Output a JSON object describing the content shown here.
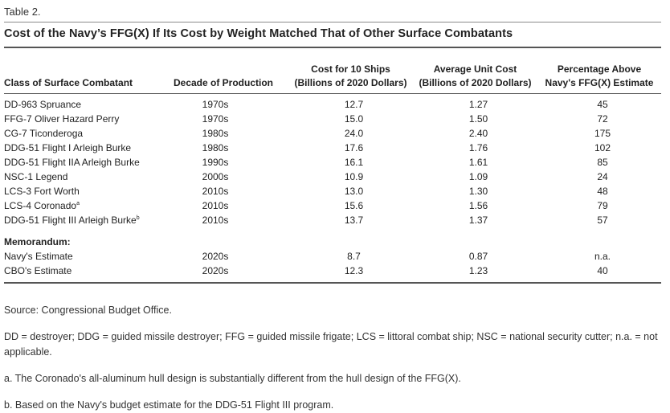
{
  "table_label": "Table 2.",
  "title": "Cost of the Navy’s FFG(X) If Its Cost by Weight Matched That of Other Surface Combatants",
  "columns": {
    "class": "Class of Surface Combatant",
    "decade": "Decade of Production",
    "cost_line1": "Cost for 10 Ships",
    "cost_line2": "(Billions of 2020 Dollars)",
    "unit_line1": "Average Unit Cost",
    "unit_line2": "(Billions of 2020 Dollars)",
    "pct_line1": "Percentage Above",
    "pct_line2": "Navy's FFG(X) Estimate"
  },
  "rows": [
    {
      "name": "DD-963 Spruance",
      "sup": "",
      "decade": "1970s",
      "cost": "12.7",
      "unit": "1.27",
      "pct": "45"
    },
    {
      "name": "FFG-7 Oliver Hazard Perry",
      "sup": "",
      "decade": "1970s",
      "cost": "15.0",
      "unit": "1.50",
      "pct": "72"
    },
    {
      "name": "CG-7 Ticonderoga",
      "sup": "",
      "decade": "1980s",
      "cost": "24.0",
      "unit": "2.40",
      "pct": "175"
    },
    {
      "name": "DDG-51 Flight I Arleigh Burke",
      "sup": "",
      "decade": "1980s",
      "cost": "17.6",
      "unit": "1.76",
      "pct": "102"
    },
    {
      "name": "DDG-51 Flight IIA Arleigh Burke",
      "sup": "",
      "decade": "1990s",
      "cost": "16.1",
      "unit": "1.61",
      "pct": "85"
    },
    {
      "name": "NSC-1 Legend",
      "sup": "",
      "decade": "2000s",
      "cost": "10.9",
      "unit": "1.09",
      "pct": "24"
    },
    {
      "name": "LCS-3 Fort Worth",
      "sup": "",
      "decade": "2010s",
      "cost": "13.0",
      "unit": "1.30",
      "pct": "48"
    },
    {
      "name": "LCS-4 Coronado",
      "sup": "a",
      "decade": "2010s",
      "cost": "15.6",
      "unit": "1.56",
      "pct": "79"
    },
    {
      "name": "DDG-51 Flight III Arleigh Burke",
      "sup": "b",
      "decade": "2010s",
      "cost": "13.7",
      "unit": "1.37",
      "pct": "57"
    }
  ],
  "memo_label": "Memorandum:",
  "memo_rows": [
    {
      "name": "Navy's Estimate",
      "decade": "2020s",
      "cost": "8.7",
      "unit": "0.87",
      "pct": "n.a."
    },
    {
      "name": "CBO's Estimate",
      "decade": "2020s",
      "cost": "12.3",
      "unit": "1.23",
      "pct": "40"
    }
  ],
  "notes": {
    "source": "Source: Congressional Budget Office.",
    "abbreviations": "DD = destroyer; DDG = guided missile destroyer; FFG = guided missile frigate; LCS = littoral combat ship; NSC = national security cutter; n.a. = not applicable.",
    "note_a": "a. The Coronado's all-aluminum hull design is substantially different from the hull design of the FFG(X).",
    "note_b": "b. Based on the Navy's budget estimate for the DDG-51 Flight III program."
  }
}
